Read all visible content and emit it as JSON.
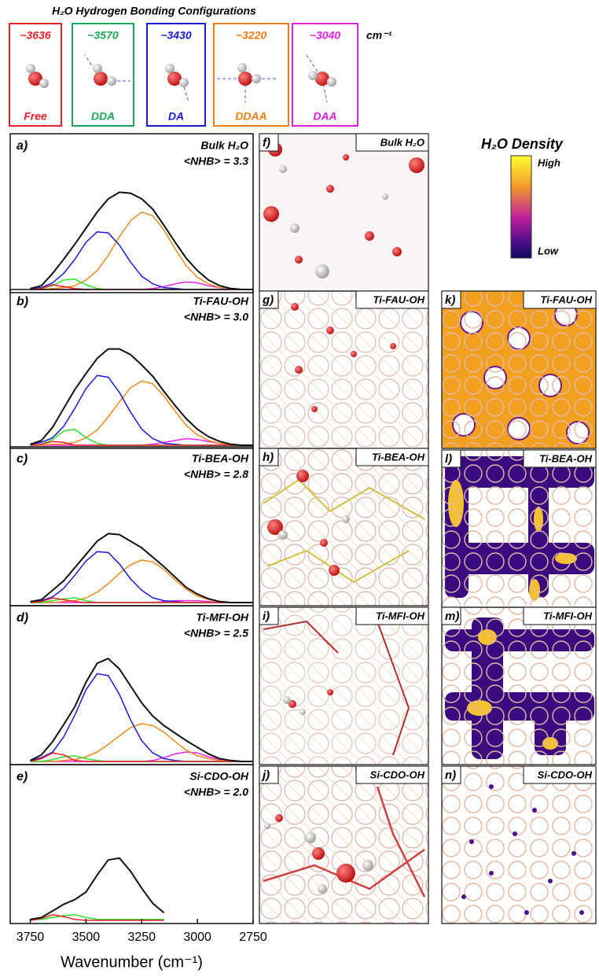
{
  "header": {
    "title": "H₂O Hydrogen Bonding Configurations",
    "unit": "cm⁻¹",
    "configs": [
      {
        "wavenumber": "~3636",
        "label": "Free",
        "color": "#e8202a"
      },
      {
        "wavenumber": "~3570",
        "label": "DDA",
        "color": "#1aa85a"
      },
      {
        "wavenumber": "~3430",
        "label": "DA",
        "color": "#1a1ad6"
      },
      {
        "wavenumber": "~3220",
        "label": "DDAA",
        "color": "#f07c1a"
      },
      {
        "wavenumber": "~3040",
        "label": "DAA",
        "color": "#e020e0"
      }
    ]
  },
  "chart_data": [
    {
      "type": "line",
      "label": "a)",
      "title": "Bulk H₂O",
      "subtitle": "<NHB> = 3.3",
      "x": [
        3750,
        3700,
        3650,
        3600,
        3550,
        3500,
        3450,
        3400,
        3350,
        3300,
        3250,
        3200,
        3150,
        3100,
        3050,
        3000,
        2950,
        2900,
        2850,
        2800,
        2750
      ],
      "xlim": [
        3840,
        2750
      ],
      "ylim": [
        0,
        1.15
      ],
      "series": [
        {
          "color": "#111111",
          "values": [
            0.01,
            0.04,
            0.17,
            0.32,
            0.48,
            0.65,
            0.82,
            0.96,
            1.03,
            1.02,
            0.96,
            0.85,
            0.68,
            0.5,
            0.33,
            0.2,
            0.1,
            0.04,
            0.01,
            0,
            0
          ]
        },
        {
          "color": "#e8202a",
          "values": [
            0,
            0.01,
            0.05,
            0.03,
            0.01,
            0,
            0,
            0,
            0,
            0,
            0,
            0,
            0,
            0,
            0,
            0,
            0,
            0,
            0,
            0,
            0
          ]
        },
        {
          "color": "#2ee02e",
          "values": [
            0,
            0.01,
            0.04,
            0.1,
            0.11,
            0.05,
            0.01,
            0,
            0,
            0,
            0,
            0,
            0,
            0,
            0,
            0,
            0,
            0,
            0,
            0,
            0
          ]
        },
        {
          "color": "#1a1ad6",
          "values": [
            0.01,
            0.02,
            0.07,
            0.17,
            0.32,
            0.5,
            0.61,
            0.6,
            0.47,
            0.29,
            0.14,
            0.06,
            0.02,
            0.01,
            0,
            0,
            0,
            0,
            0,
            0,
            0
          ]
        },
        {
          "color": "#f08a1e",
          "values": [
            0,
            0,
            0.01,
            0.02,
            0.04,
            0.1,
            0.2,
            0.36,
            0.56,
            0.73,
            0.82,
            0.78,
            0.63,
            0.43,
            0.25,
            0.13,
            0.06,
            0.02,
            0.01,
            0,
            0
          ]
        },
        {
          "color": "#ee22ee",
          "values": [
            0,
            0,
            0,
            0,
            0,
            0,
            0,
            0,
            0,
            0,
            0,
            0.01,
            0.03,
            0.06,
            0.08,
            0.07,
            0.04,
            0.02,
            0,
            0,
            0
          ]
        }
      ]
    },
    {
      "type": "line",
      "label": "b)",
      "title": "Ti-FAU-OH",
      "subtitle": "<NHB> = 3.0",
      "x": [
        3750,
        3700,
        3650,
        3600,
        3550,
        3500,
        3450,
        3400,
        3350,
        3300,
        3250,
        3200,
        3150,
        3100,
        3050,
        3000,
        2950,
        2900,
        2850,
        2800,
        2750
      ],
      "xlim": [
        3840,
        2750
      ],
      "ylim": [
        0,
        1.15
      ],
      "series": [
        {
          "color": "#111111",
          "values": [
            0.01,
            0.05,
            0.19,
            0.39,
            0.59,
            0.76,
            0.92,
            1.02,
            1.02,
            0.96,
            0.85,
            0.73,
            0.57,
            0.42,
            0.28,
            0.17,
            0.09,
            0.04,
            0.01,
            0,
            0
          ]
        },
        {
          "color": "#e8202a",
          "values": [
            0,
            0.01,
            0.04,
            0.03,
            0,
            0,
            0,
            0,
            0,
            0,
            0,
            0,
            0,
            0,
            0,
            0,
            0,
            0,
            0,
            0,
            0
          ]
        },
        {
          "color": "#2ee02e",
          "values": [
            0,
            0.01,
            0.06,
            0.15,
            0.17,
            0.08,
            0.02,
            0,
            0,
            0,
            0,
            0,
            0,
            0,
            0,
            0,
            0,
            0,
            0,
            0,
            0
          ]
        },
        {
          "color": "#1a1ad6",
          "values": [
            0.01,
            0.03,
            0.08,
            0.2,
            0.39,
            0.6,
            0.74,
            0.72,
            0.56,
            0.35,
            0.17,
            0.07,
            0.02,
            0.01,
            0,
            0,
            0,
            0,
            0,
            0,
            0
          ]
        },
        {
          "color": "#f08a1e",
          "values": [
            0,
            0,
            0.01,
            0.01,
            0.03,
            0.08,
            0.16,
            0.3,
            0.46,
            0.61,
            0.68,
            0.65,
            0.52,
            0.36,
            0.21,
            0.11,
            0.05,
            0.02,
            0.01,
            0,
            0
          ]
        },
        {
          "color": "#ee22ee",
          "values": [
            0,
            0,
            0,
            0,
            0,
            0,
            0,
            0,
            0,
            0,
            0,
            0.01,
            0.03,
            0.05,
            0.07,
            0.06,
            0.04,
            0.02,
            0,
            0,
            0
          ]
        }
      ]
    },
    {
      "type": "line",
      "label": "c)",
      "title": "Ti-BEA-OH",
      "subtitle": "<NHB> = 2.8",
      "x": [
        3750,
        3700,
        3650,
        3600,
        3550,
        3500,
        3450,
        3400,
        3350,
        3300,
        3250,
        3200,
        3150,
        3100,
        3050,
        3000,
        2950,
        2900,
        2850,
        2800,
        2750
      ],
      "xlim": [
        3840,
        2750
      ],
      "ylim": [
        0,
        1.15
      ],
      "series": [
        {
          "color": "#111111",
          "values": [
            0.01,
            0.03,
            0.13,
            0.23,
            0.37,
            0.51,
            0.65,
            0.73,
            0.72,
            0.65,
            0.58,
            0.48,
            0.38,
            0.27,
            0.16,
            0.09,
            0.04,
            0.01,
            0,
            0,
            0
          ]
        },
        {
          "color": "#e8202a",
          "values": [
            0,
            0.01,
            0.05,
            0.03,
            0.01,
            0,
            0,
            0,
            0,
            0,
            0,
            0,
            0,
            0,
            0,
            0,
            0,
            0,
            0,
            0,
            0
          ]
        },
        {
          "color": "#2ee02e",
          "values": [
            0,
            0,
            0.02,
            0.04,
            0.05,
            0.02,
            0,
            0,
            0,
            0,
            0,
            0,
            0,
            0,
            0,
            0,
            0,
            0,
            0,
            0,
            0
          ]
        },
        {
          "color": "#1a1ad6",
          "values": [
            0.01,
            0.02,
            0.06,
            0.15,
            0.29,
            0.44,
            0.54,
            0.53,
            0.41,
            0.25,
            0.13,
            0.05,
            0.02,
            0.01,
            0,
            0,
            0,
            0,
            0,
            0,
            0
          ]
        },
        {
          "color": "#f08a1e",
          "values": [
            0,
            0,
            0,
            0.01,
            0.02,
            0.05,
            0.11,
            0.2,
            0.31,
            0.4,
            0.45,
            0.43,
            0.35,
            0.24,
            0.14,
            0.07,
            0.03,
            0.01,
            0,
            0,
            0
          ]
        },
        {
          "color": "#ee22ee",
          "values": [
            0,
            0,
            0,
            0,
            0,
            0,
            0,
            0,
            0,
            0,
            0,
            0,
            0.01,
            0.02,
            0.02,
            0.02,
            0.01,
            0,
            0,
            0,
            0
          ]
        }
      ]
    },
    {
      "type": "line",
      "label": "d)",
      "title": "Ti-MFI-OH",
      "subtitle": "<NHB> = 2.5",
      "x": [
        3750,
        3700,
        3650,
        3600,
        3550,
        3500,
        3450,
        3400,
        3350,
        3300,
        3250,
        3200,
        3150,
        3100,
        3050,
        3000,
        2950,
        2900,
        2850,
        2800,
        2750
      ],
      "xlim": [
        3840,
        2750
      ],
      "ylim": [
        0,
        1.15
      ],
      "series": [
        {
          "color": "#111111",
          "values": [
            0.01,
            0.07,
            0.21,
            0.39,
            0.58,
            0.84,
            1.04,
            1.09,
            0.98,
            0.8,
            0.62,
            0.48,
            0.38,
            0.3,
            0.22,
            0.15,
            0.08,
            0.03,
            0.01,
            0,
            0
          ]
        },
        {
          "color": "#e8202a",
          "values": [
            0,
            0.03,
            0.09,
            0.07,
            0.01,
            0,
            0,
            0,
            0,
            0,
            0,
            0,
            0,
            0,
            0,
            0,
            0,
            0,
            0,
            0,
            0
          ]
        },
        {
          "color": "#2ee02e",
          "values": [
            0,
            0,
            0.02,
            0.05,
            0.06,
            0.03,
            0.01,
            0,
            0,
            0,
            0,
            0,
            0,
            0,
            0,
            0,
            0,
            0,
            0,
            0,
            0
          ]
        },
        {
          "color": "#1a1ad6",
          "values": [
            0.01,
            0.04,
            0.1,
            0.26,
            0.49,
            0.76,
            0.93,
            0.91,
            0.71,
            0.44,
            0.22,
            0.09,
            0.03,
            0.01,
            0,
            0,
            0,
            0,
            0,
            0,
            0
          ]
        },
        {
          "color": "#f08a1e",
          "values": [
            0,
            0,
            0,
            0.01,
            0.02,
            0.05,
            0.1,
            0.18,
            0.27,
            0.36,
            0.4,
            0.38,
            0.31,
            0.21,
            0.12,
            0.06,
            0.03,
            0.01,
            0,
            0,
            0
          ]
        },
        {
          "color": "#ee22ee",
          "values": [
            0,
            0,
            0,
            0,
            0,
            0,
            0,
            0,
            0,
            0,
            0,
            0.01,
            0.04,
            0.08,
            0.1,
            0.09,
            0.05,
            0.02,
            0.01,
            0,
            0
          ]
        }
      ]
    },
    {
      "type": "line",
      "label": "e)",
      "title": "Si-CDO-OH",
      "subtitle": "<NHB> = 2.0",
      "x": [
        3750,
        3700,
        3650,
        3600,
        3550,
        3500,
        3450,
        3400,
        3350,
        3300,
        3250,
        3200,
        3150,
        3100,
        3050,
        3000,
        2950,
        2900,
        2850,
        2800,
        2750
      ],
      "xlim": [
        3840,
        2750
      ],
      "ylim": [
        0,
        1.15
      ],
      "xticks": [
        3750,
        3500,
        3250,
        3000,
        2750
      ],
      "xlabel": "Wavenumber (cm⁻¹)",
      "series": [
        {
          "color": "#111111",
          "values": [
            0.01,
            0.03,
            0.1,
            0.17,
            0.22,
            0.3,
            0.48,
            0.64,
            0.66,
            0.52,
            0.34,
            0.18,
            0.08,
            null,
            null,
            null,
            null,
            null,
            null,
            null,
            null
          ]
        },
        {
          "color": "#e8202a",
          "values": [
            0,
            0.02,
            0.06,
            0.04,
            0.01,
            0,
            0,
            0,
            0,
            0,
            0,
            0,
            0,
            null,
            null,
            null,
            null,
            null,
            null,
            null,
            null
          ]
        },
        {
          "color": "#2ee02e",
          "values": [
            0.01,
            0.01,
            0.03,
            0.05,
            0.06,
            0.03,
            0.01,
            0.01,
            0.01,
            0.01,
            0.01,
            0.01,
            0.01,
            null,
            null,
            null,
            null,
            null,
            null,
            null,
            null
          ]
        }
      ]
    }
  ],
  "snapshots": [
    {
      "label": "f)",
      "title": "Bulk H₂O"
    },
    {
      "label": "g)",
      "title": "Ti-FAU-OH"
    },
    {
      "label": "h)",
      "title": "Ti-BEA-OH"
    },
    {
      "label": "i)",
      "title": "Ti-MFI-OH"
    },
    {
      "label": "j)",
      "title": "Si-CDO-OH"
    }
  ],
  "density": {
    "title": "H₂O Density",
    "high": "High",
    "low": "Low",
    "panels": [
      {
        "label": "k)",
        "title": "Ti-FAU-OH"
      },
      {
        "label": "l)",
        "title": "Ti-BEA-OH"
      },
      {
        "label": "m)",
        "title": "Ti-MFI-OH"
      },
      {
        "label": "n)",
        "title": "Si-CDO-OH"
      }
    ]
  }
}
